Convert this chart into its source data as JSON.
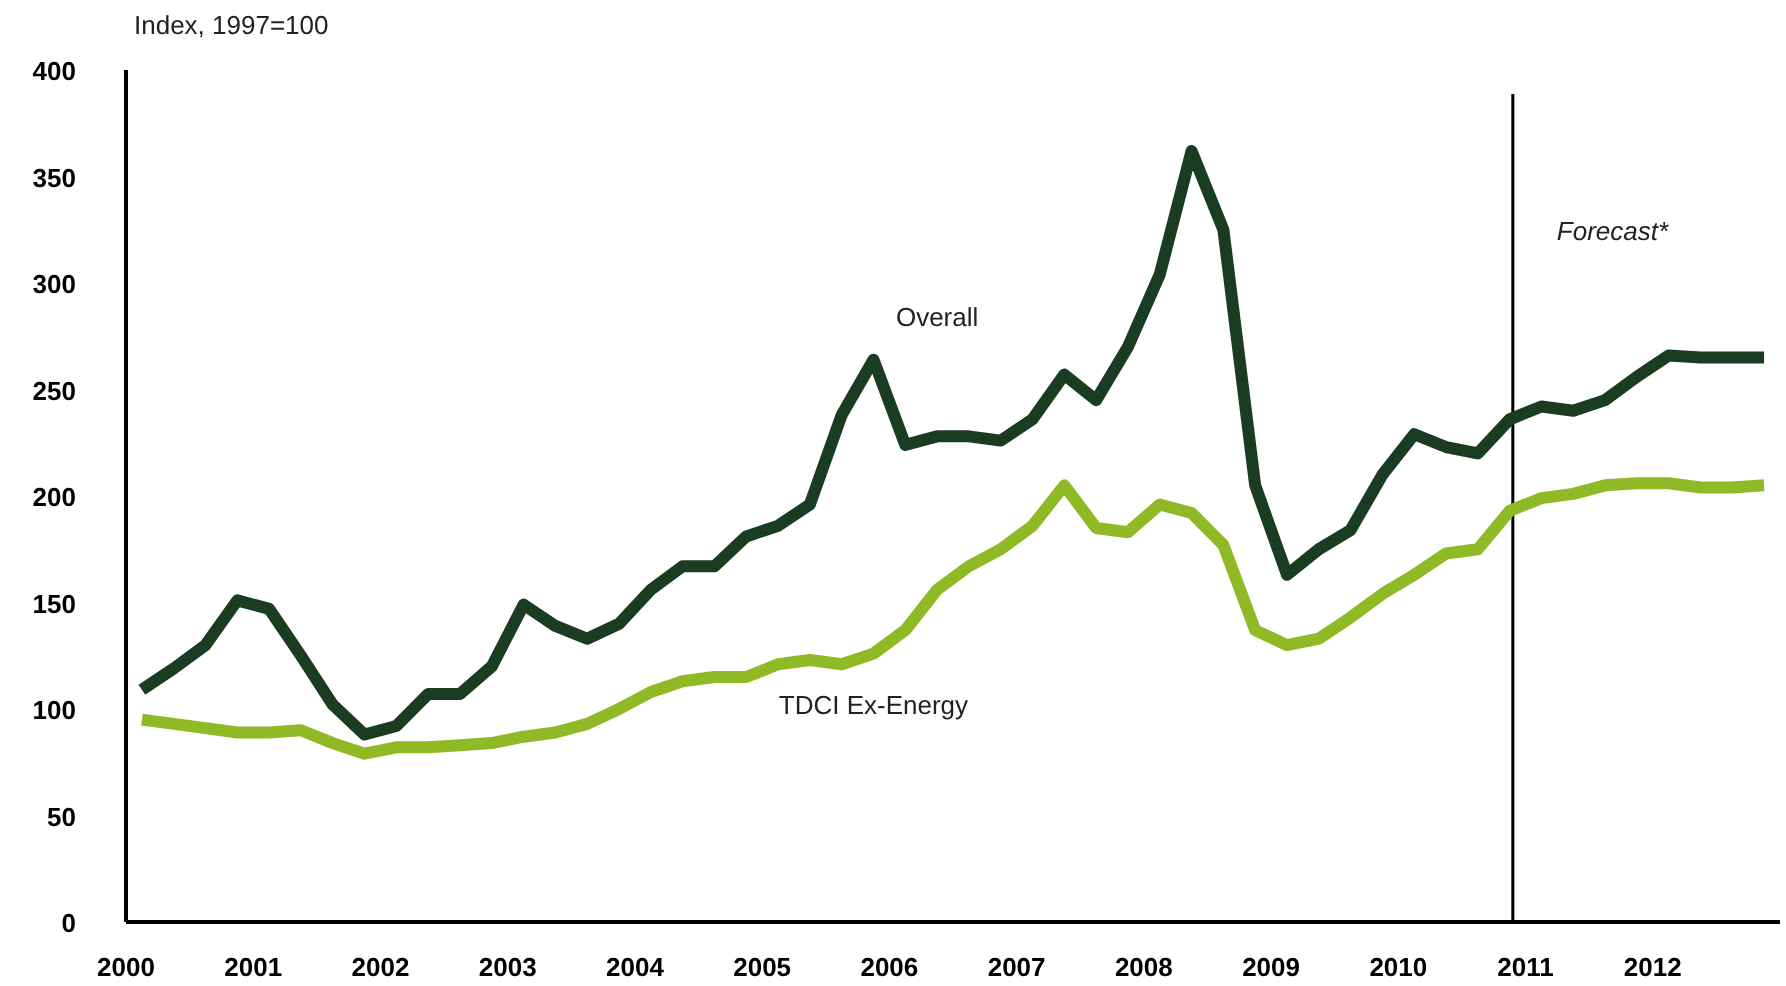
{
  "chart_data": {
    "type": "line",
    "ylabel": "Index, 1997=100",
    "x": [
      2000.125,
      2000.375,
      2000.625,
      2000.875,
      2001.125,
      2001.375,
      2001.625,
      2001.875,
      2002.125,
      2002.375,
      2002.625,
      2002.875,
      2003.125,
      2003.375,
      2003.625,
      2003.875,
      2004.125,
      2004.375,
      2004.625,
      2004.875,
      2005.125,
      2005.375,
      2005.625,
      2005.875,
      2006.125,
      2006.375,
      2006.625,
      2006.875,
      2007.125,
      2007.375,
      2007.625,
      2007.875,
      2008.125,
      2008.375,
      2008.625,
      2008.875,
      2009.125,
      2009.375,
      2009.625,
      2009.875,
      2010.125,
      2010.375,
      2010.625,
      2010.875,
      2011.125,
      2011.375,
      2011.625,
      2011.875,
      2012.125,
      2012.375,
      2012.625,
      2012.875
    ],
    "series": [
      {
        "name": "Overall",
        "color": "#1a3d22",
        "values": [
          109,
          119,
          130,
          151,
          147,
          125,
          102,
          88,
          92,
          107,
          107,
          120,
          149,
          139,
          133,
          140,
          156,
          167,
          167,
          181,
          186,
          196,
          238,
          264,
          224,
          228,
          228,
          226,
          236,
          257,
          245,
          270,
          304,
          362,
          325,
          205,
          163,
          175,
          184,
          210,
          229,
          223,
          220,
          236,
          242,
          240,
          245,
          256,
          266,
          265,
          265,
          265
        ]
      },
      {
        "name": "TDCI Ex-Energy",
        "color": "#8fba26",
        "values": [
          95,
          93,
          91,
          89,
          89,
          90,
          84,
          79,
          82,
          82,
          83,
          84,
          87,
          89,
          93,
          100,
          108,
          113,
          115,
          115,
          121,
          123,
          121,
          126,
          137,
          156,
          167,
          175,
          186,
          205,
          185,
          183,
          196,
          192,
          177,
          137,
          130,
          133,
          143,
          154,
          163,
          173,
          175,
          193,
          199,
          201,
          205,
          206,
          206,
          204,
          204,
          205
        ]
      }
    ],
    "xlim": [
      2000,
      2013
    ],
    "xticks": [
      2000,
      2001,
      2002,
      2003,
      2004,
      2005,
      2006,
      2007,
      2008,
      2009,
      2010,
      2011,
      2012
    ],
    "ylim": [
      0,
      400
    ],
    "yticks": [
      0,
      50,
      100,
      150,
      200,
      250,
      300,
      350,
      400
    ],
    "ref_lines": [
      {
        "axis": "x",
        "value": 2010.9,
        "label": "Forecast*",
        "color": "#000000"
      }
    ],
    "grid": false,
    "line_style": "solid",
    "marker": "none"
  }
}
